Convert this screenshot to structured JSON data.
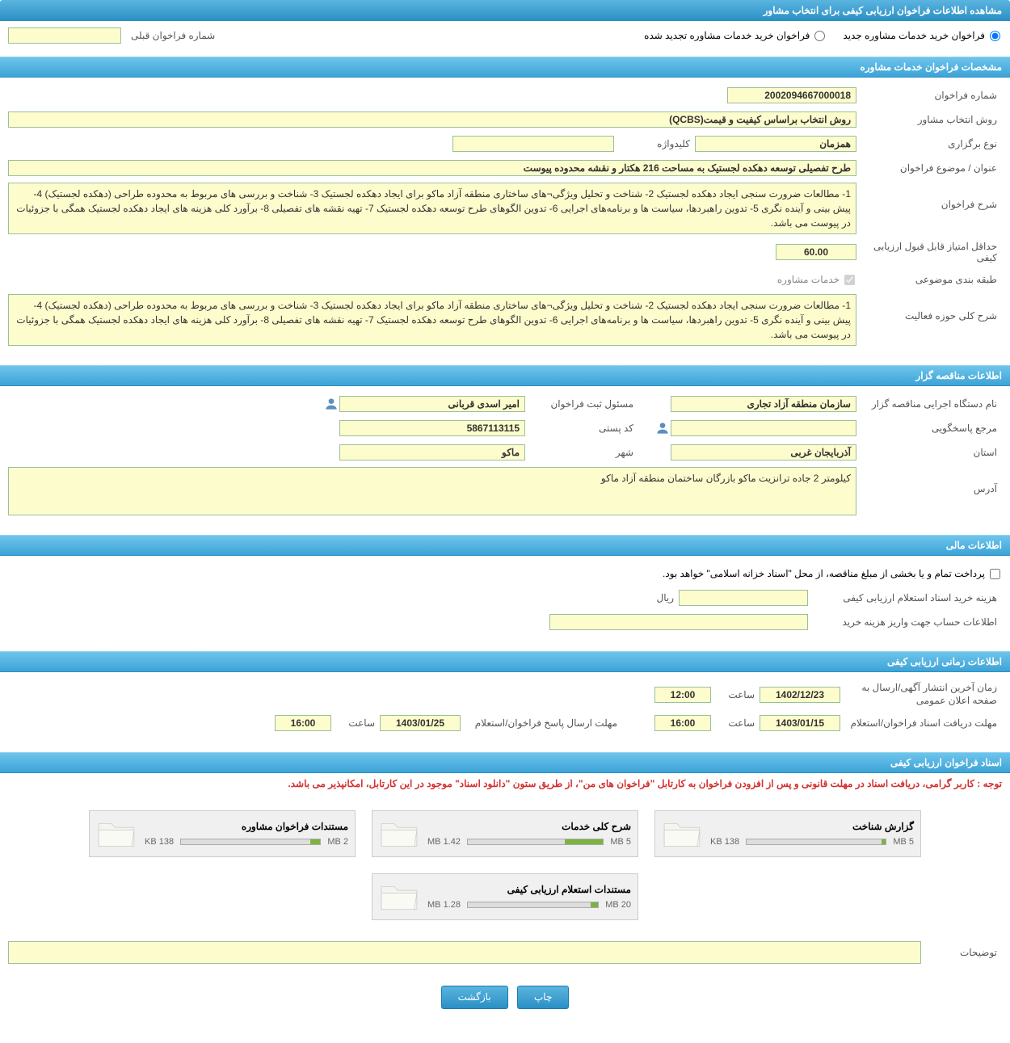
{
  "colors": {
    "header_grad_top": "#5bb5e0",
    "header_grad_bottom": "#2a8fc4",
    "value_bg": "#fdfccd",
    "value_border": "#9bbf9b",
    "notice": "#d32f2f"
  },
  "page_title": "مشاهده اطلاعات فراخوان ارزیابی کیفی برای انتخاب مشاور",
  "radios": {
    "new_label": "فراخوان خرید خدمات مشاوره جدید",
    "renewed_label": "فراخوان خرید خدمات مشاوره تجدید شده",
    "prev_number_label": "شماره فراخوان قبلی",
    "prev_number_value": ""
  },
  "section_specs": {
    "title": "مشخصات فراخوان خدمات مشاوره",
    "call_number_label": "شماره فراخوان",
    "call_number": "2002094667000018",
    "method_label": "روش انتخاب مشاور",
    "method": "روش انتخاب براساس کیفیت و قیمت(QCBS)",
    "type_label": "نوع برگزاری",
    "type": "همزمان",
    "keyword_label": "کلیدواژه",
    "keyword": "",
    "subject_label": "عنوان / موضوع فراخوان",
    "subject": "طرح تفصیلی توسعه دهکده لجستیک به مساحت 216 هکتار و نقشه محدوده پیوست",
    "desc_label": "شرح فراخوان",
    "desc": "1-\tمطالعات ضرورت سنجی ایجاد دهکده لجستیک 2-\tشناخت  و تحلیل ویژگی¬های ساختاری منطقه آزاد ماکو برای ایجاد دهکده لجستیک 3- شناخت و بررسی های مربوط به محدوده طراحی (دهکده لجستیک)  4-\tپیش بینی و آینده نگری  5-\tتدوین راهبردها، سیاست ها و برنامه‌های اجرایی 6-\tتدوین الگوهای طرح توسعه دهکده لجستیک 7- تهیه نقشه های تفصیلی 8-  برآورد کلی  هزینه های ایجاد دهکده لجستیک همگی با جزوئیات در پیوست می باشد.",
    "min_score_label": "حداقل امتیاز قابل قبول ارزیابی کیفی",
    "min_score": "60.00",
    "category_label": "طبقه بندی موضوعی",
    "category_checkbox": "خدمات مشاوره",
    "activity_label": "شرح کلی حوزه فعالیت",
    "activity": "1-\tمطالعات ضرورت سنجی ایجاد دهکده لجستیک 2-\tشناخت  و تحلیل ویژگی¬های ساختاری منطقه آزاد ماکو برای ایجاد دهکده لجستیک 3- شناخت و بررسی های مربوط به محدوده طراحی (دهکده لجستیک)  4-\tپیش بینی و آینده نگری  5-\tتدوین راهبردها، سیاست ها و برنامه‌های اجرایی 6-\tتدوین الگوهای طرح توسعه دهکده لجستیک 7- تهیه نقشه های تفصیلی 8-  برآورد کلی  هزینه های ایجاد دهکده لجستیک همگی با جزوئیات در پیوست می باشد."
  },
  "section_org": {
    "title": "اطلاعات مناقصه گزار",
    "org_label": "نام دستگاه اجرایی مناقصه گزار",
    "org": "سازمان منطقه آزاد تجاری",
    "reg_resp_label": "مسئول ثبت فراخوان",
    "reg_resp": "امیر اسدی قربانی",
    "contact_label": "مرجع پاسخگویی",
    "contact": "",
    "postal_label": "کد پستی",
    "postal": "5867113115",
    "province_label": "استان",
    "province": "آذربایجان غربی",
    "city_label": "شهر",
    "city": "ماکو",
    "address_label": "آدرس",
    "address": "کیلومتر 2 جاده ترانزیت ماکو بازرگان ساختمان منطقه آزاد ماکو"
  },
  "section_financial": {
    "title": "اطلاعات مالی",
    "treasury_note": "پرداخت تمام و یا بخشی از مبلغ مناقصه، از محل \"اسناد خزانه اسلامی\" خواهد بود.",
    "doc_cost_label": "هزینه خرید اسناد استعلام ارزیابی کیفی",
    "doc_cost": "",
    "currency": "ریال",
    "account_label": "اطلاعات حساب جهت واریز هزینه خرید",
    "account": ""
  },
  "section_time": {
    "title": "اطلاعات زمانی ارزیابی کیفی",
    "publish_label": "زمان آخرین انتشار آگهی/ارسال به صفحه اعلان عمومی",
    "publish_date": "1402/12/23",
    "time_label": "ساعت",
    "publish_time": "12:00",
    "receive_label": "مهلت دریافت اسناد فراخوان/استعلام",
    "receive_date": "1403/01/15",
    "receive_time": "16:00",
    "submit_label": "مهلت ارسال پاسخ فراخوان/استعلام",
    "submit_date": "1403/01/25",
    "submit_time": "16:00"
  },
  "section_docs": {
    "title": "اسناد فراخوان ارزیابی کیفی",
    "notice": "توجه : کاربر گرامی، دریافت اسناد در مهلت قانونی و پس از افزودن فراخوان به کارتابل \"فراخوان های من\"، از طریق ستون \"دانلود اسناد\" موجود در این کارتابل، امکانپذیر می باشد.",
    "files": [
      {
        "title": "گزارش شناخت",
        "size": "138 KB",
        "max": "5 MB",
        "fill_pct": 3
      },
      {
        "title": "شرح کلی خدمات",
        "size": "1.42 MB",
        "max": "5 MB",
        "fill_pct": 28
      },
      {
        "title": "مستندات فراخوان مشاوره",
        "size": "138 KB",
        "max": "2 MB",
        "fill_pct": 7
      },
      {
        "title": "مستندات استعلام ارزیابی کیفی",
        "size": "1.28 MB",
        "max": "20 MB",
        "fill_pct": 6
      }
    ],
    "remarks_label": "توضیحات",
    "remarks": ""
  },
  "buttons": {
    "print": "چاپ",
    "back": "بازگشت"
  }
}
